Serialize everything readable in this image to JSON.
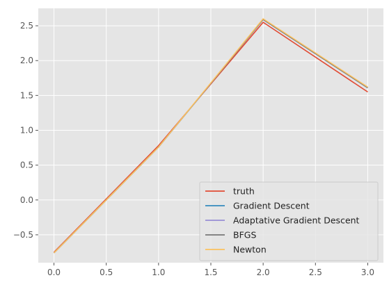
{
  "chart_data": {
    "type": "line",
    "title": "",
    "xlabel": "",
    "ylabel": "",
    "x": [
      0,
      1,
      2,
      3
    ],
    "xlim": [
      -0.15,
      3.15
    ],
    "ylim": [
      -0.9,
      2.75
    ],
    "xticks": [
      0.0,
      0.5,
      1.0,
      1.5,
      2.0,
      2.5,
      3.0
    ],
    "xtick_labels": [
      "0.0",
      "0.5",
      "1.0",
      "1.5",
      "2.0",
      "2.5",
      "3.0"
    ],
    "yticks": [
      -0.5,
      0.0,
      0.5,
      1.0,
      1.5,
      2.0,
      2.5
    ],
    "ytick_labels": [
      "−0.5",
      "0.0",
      "0.5",
      "1.0",
      "1.5",
      "2.0",
      "2.5"
    ],
    "grid": true,
    "style": "ggplot",
    "legend_position": "lower-right",
    "series": [
      {
        "name": "truth",
        "color": "#E24A33",
        "values": [
          -0.75,
          0.78,
          2.55,
          1.55
        ]
      },
      {
        "name": "Gradient Descent",
        "color": "#348ABD",
        "values": [
          -0.76,
          0.76,
          2.59,
          1.61
        ]
      },
      {
        "name": "Adaptative Gradient Descent",
        "color": "#988ED5",
        "values": [
          -0.76,
          0.76,
          2.59,
          1.61
        ]
      },
      {
        "name": "BFGS",
        "color": "#777777",
        "values": [
          -0.76,
          0.76,
          2.59,
          1.61
        ]
      },
      {
        "name": "Newton",
        "color": "#FBC15E",
        "values": [
          -0.76,
          0.76,
          2.6,
          1.62
        ]
      }
    ]
  }
}
